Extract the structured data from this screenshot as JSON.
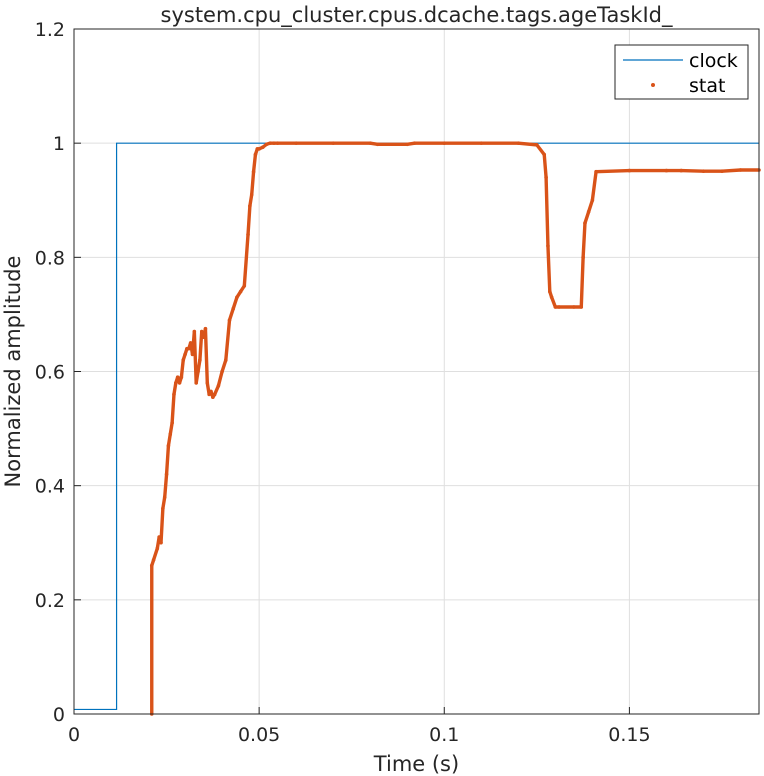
{
  "chart_data": {
    "type": "line",
    "title": "system.cpu_cluster.cpus.dcache.tags.ageTaskId_",
    "xlabel": "Time (s)",
    "ylabel": "Normalized amplitude",
    "xlim": [
      0,
      0.185
    ],
    "ylim": [
      0,
      1.2
    ],
    "xticks": [
      0,
      0.05,
      0.1,
      0.15
    ],
    "xtick_labels": [
      "0",
      "0.05",
      "0.1",
      "0.15"
    ],
    "yticks": [
      0,
      0.2,
      0.4,
      0.6,
      0.8,
      1.0,
      1.2
    ],
    "ytick_labels": [
      "0",
      "0.2",
      "0.4",
      "0.6",
      "0.8",
      "1",
      "1.2"
    ],
    "grid": true,
    "legend": "top-right",
    "series": [
      {
        "name": "clock",
        "color": "#0072BD",
        "style": "step",
        "x": [
          0,
          0.0115,
          0.0115,
          0.185
        ],
        "y": [
          0.008,
          0.008,
          1.0,
          1.0
        ]
      },
      {
        "name": "stat",
        "color": "#D95319",
        "style": "dots",
        "x": [
          0.021,
          0.021,
          0.0215,
          0.0225,
          0.023,
          0.0235,
          0.024,
          0.0245,
          0.025,
          0.0255,
          0.026,
          0.0265,
          0.027,
          0.0275,
          0.028,
          0.0285,
          0.029,
          0.0295,
          0.03,
          0.0305,
          0.031,
          0.0315,
          0.032,
          0.0325,
          0.033,
          0.0335,
          0.034,
          0.0345,
          0.035,
          0.0355,
          0.036,
          0.0365,
          0.037,
          0.0375,
          0.038,
          0.039,
          0.04,
          0.041,
          0.042,
          0.043,
          0.044,
          0.045,
          0.046,
          0.047,
          0.0475,
          0.048,
          0.0485,
          0.049,
          0.0495,
          0.05,
          0.051,
          0.052,
          0.053,
          0.054,
          0.055,
          0.06,
          0.07,
          0.08,
          0.082,
          0.09,
          0.092,
          0.1,
          0.11,
          0.12,
          0.125,
          0.127,
          0.1275,
          0.128,
          0.1285,
          0.129,
          0.13,
          0.131,
          0.135,
          0.137,
          0.1375,
          0.138,
          0.139,
          0.14,
          0.141,
          0.15,
          0.16,
          0.164,
          0.17,
          0.175,
          0.18,
          0.185
        ],
        "y": [
          0.0,
          0.26,
          0.27,
          0.29,
          0.31,
          0.3,
          0.36,
          0.38,
          0.42,
          0.47,
          0.49,
          0.51,
          0.56,
          0.58,
          0.59,
          0.58,
          0.59,
          0.62,
          0.63,
          0.64,
          0.64,
          0.65,
          0.63,
          0.67,
          0.58,
          0.6,
          0.62,
          0.67,
          0.66,
          0.675,
          0.58,
          0.56,
          0.565,
          0.555,
          0.56,
          0.575,
          0.6,
          0.62,
          0.69,
          0.71,
          0.73,
          0.74,
          0.75,
          0.84,
          0.89,
          0.91,
          0.95,
          0.98,
          0.99,
          0.99,
          0.993,
          0.998,
          1.0,
          1.0,
          1.0,
          1.0,
          1.0,
          1.0,
          0.998,
          0.998,
          1.0,
          1.0,
          1.0,
          1.0,
          0.997,
          0.98,
          0.94,
          0.82,
          0.74,
          0.73,
          0.713,
          0.713,
          0.713,
          0.713,
          0.8,
          0.86,
          0.88,
          0.9,
          0.95,
          0.952,
          0.952,
          0.952,
          0.951,
          0.951,
          0.953,
          0.953
        ]
      }
    ]
  }
}
